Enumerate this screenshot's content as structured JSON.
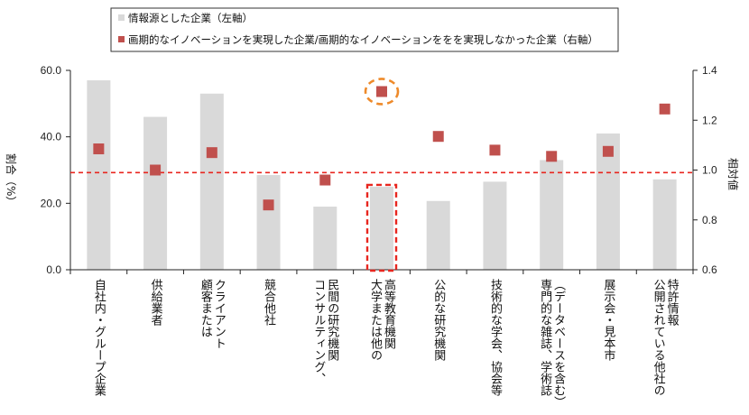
{
  "chart_data": {
    "type": "bar",
    "categories": [
      "自社内・グループ企業",
      "供給業者",
      "クライアント顧客または",
      "競合他社",
      "民間の研究機関コンサルティング、",
      "高等教育機関大学または他の",
      "公的な研究機関",
      "技術的な学会、協会等",
      "（データベースを含む）専門的な雑誌、学術誌",
      "展示会・見本市",
      "特許情報公開されている他社の"
    ],
    "category_lines": [
      [
        "自社内・グループ企業"
      ],
      [
        "供給業者"
      ],
      [
        "クライアント",
        "顧客または"
      ],
      [
        "競合他社"
      ],
      [
        "民間の研究機関",
        "コンサルティング、"
      ],
      [
        "高等教育機関",
        "大学または他の"
      ],
      [
        "公的な研究機関"
      ],
      [
        "技術的な学会、協会等"
      ],
      [
        "（データベースを含む）",
        "専門的な雑誌、学術誌"
      ],
      [
        "展示会・見本市"
      ],
      [
        "特許情報",
        "公開されている他社の"
      ]
    ],
    "series": [
      {
        "name": "情報源とした企業（左軸）",
        "kind": "bar",
        "axis": "left",
        "color": "#d9d9d9",
        "values": [
          57.0,
          46.0,
          53.0,
          28.5,
          19.0,
          25.0,
          20.7,
          26.5,
          33.0,
          41.0,
          27.2
        ]
      },
      {
        "name": "画期的なイノベーションを実現した企業/画期的なイノベーションををを実現しなかった企業（右軸）",
        "kind": "marker",
        "axis": "right",
        "color": "#c0504d",
        "values": [
          1.085,
          1.0,
          1.07,
          0.86,
          0.96,
          1.315,
          1.135,
          1.08,
          1.055,
          1.075,
          1.245
        ]
      }
    ],
    "y_left": {
      "label": "割合（%）",
      "ylim": [
        0,
        60
      ],
      "ticks": [
        "0.0",
        "20.0",
        "40.0",
        "60.0"
      ],
      "tick_values": [
        0,
        20,
        40,
        60
      ]
    },
    "y_right": {
      "label": "相対値",
      "ylim": [
        0.6,
        1.4
      ],
      "ticks": [
        "0.6",
        "0.8",
        "1.0",
        "1.2",
        "1.4"
      ],
      "tick_values": [
        0.6,
        0.8,
        1.0,
        1.2,
        1.4
      ]
    },
    "reference_line": {
      "axis": "right",
      "value": 0.99,
      "color": "#e8261f",
      "style": "dashed"
    },
    "highlights": [
      {
        "type": "ellipse",
        "category_index": 5,
        "series": "marker",
        "color": "#ee8a2a"
      },
      {
        "type": "rect",
        "category_index": 5,
        "series": "bar",
        "color": "#e8261f"
      }
    ],
    "legend": {
      "placement": "top-center"
    },
    "grid": false
  }
}
